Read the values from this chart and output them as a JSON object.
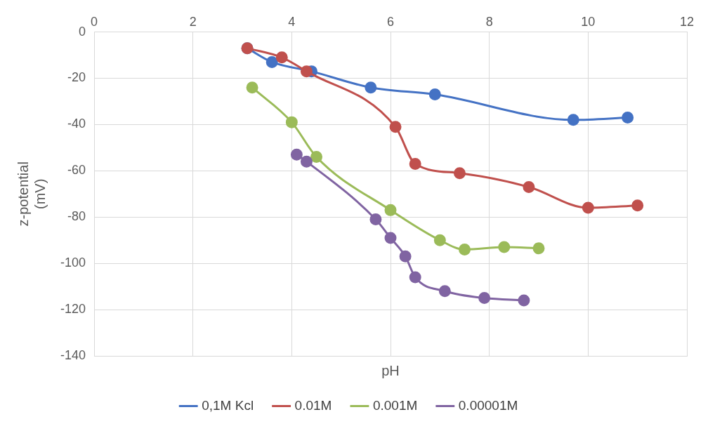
{
  "chart_data": {
    "type": "line",
    "xlabel": "pH",
    "ylabel": "z-potential (mV)",
    "xlim": [
      0,
      12
    ],
    "xticks": [
      0,
      2,
      4,
      6,
      8,
      10,
      12
    ],
    "ylim": [
      -140,
      0
    ],
    "yticks": [
      -140,
      -120,
      -100,
      -80,
      -60,
      -40,
      -20,
      0
    ],
    "grid": true,
    "legend": "bottom",
    "marker": "circle",
    "line_style": "solid",
    "series": [
      {
        "name": "0,1M Kcl",
        "color": "#4472c4",
        "x": [
          3.1,
          3.6,
          4.4,
          5.6,
          6.9,
          9.7,
          10.8
        ],
        "values": [
          -7,
          -13,
          -17,
          -24,
          -27,
          -38,
          -37
        ]
      },
      {
        "name": "0.01M",
        "color": "#c0504d",
        "x": [
          3.1,
          3.8,
          4.3,
          6.1,
          6.5,
          7.4,
          8.8,
          10,
          11
        ],
        "values": [
          -7,
          -11,
          -17,
          -41,
          -57,
          -61,
          -67,
          -76,
          -75
        ]
      },
      {
        "name": "0.001M",
        "color": "#9bbb59",
        "x": [
          3.2,
          4.0,
          4.5,
          6,
          7,
          7.5,
          8.3,
          9
        ],
        "values": [
          -24,
          -39,
          -54,
          -77,
          -90,
          -94,
          -93,
          -93.5
        ]
      },
      {
        "name": "0.00001M",
        "color": "#8064a2",
        "x": [
          4.1,
          4.3,
          5.7,
          6,
          6.3,
          6.5,
          7.1,
          7.9,
          8.7
        ],
        "values": [
          -53,
          -56,
          -81,
          -89,
          -97,
          -106,
          -112,
          -115,
          -116
        ]
      }
    ]
  }
}
